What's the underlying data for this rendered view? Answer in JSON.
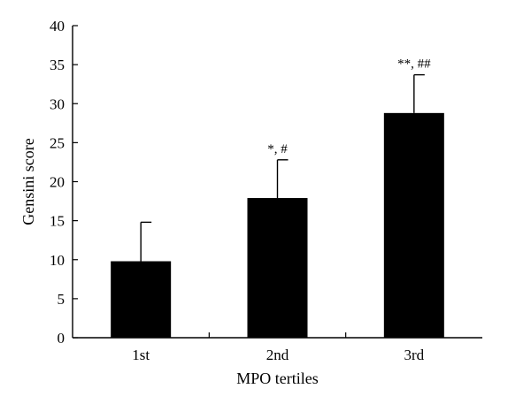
{
  "chart_data": {
    "type": "bar",
    "categories": [
      "1st",
      "2nd",
      "3rd"
    ],
    "values": [
      9.8,
      17.9,
      28.8
    ],
    "errors": [
      5.0,
      4.9,
      4.9
    ],
    "annotations": [
      "",
      "*, #",
      "**, ##"
    ],
    "xlabel": "MPO tertiles",
    "ylabel": "Gensini score",
    "ylim": [
      0,
      40
    ],
    "yticks": [
      "0",
      "5",
      "10",
      "15",
      "20",
      "25",
      "30",
      "35",
      "40"
    ],
    "bar_color": "#000000",
    "grid": false
  }
}
